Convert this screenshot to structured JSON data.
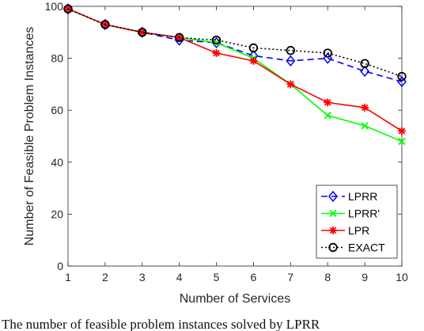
{
  "chart_data": {
    "type": "line",
    "title": "",
    "xlabel": "Number of Services",
    "ylabel": "Number of Feasible Problem Instances",
    "x": [
      1,
      2,
      3,
      4,
      5,
      6,
      7,
      8,
      9,
      10
    ],
    "xlim": [
      1,
      10
    ],
    "ylim": [
      0,
      100
    ],
    "xticks": [
      "1",
      "2",
      "3",
      "4",
      "5",
      "6",
      "7",
      "8",
      "9",
      "10"
    ],
    "yticks": [
      "0",
      "20",
      "40",
      "60",
      "80",
      "100"
    ],
    "grid": false,
    "legend_position": "bottom-right",
    "series": [
      {
        "name": "LPRR",
        "color": "#0000ff",
        "line": "dashed",
        "marker": "diamond",
        "values": [
          99,
          93,
          90,
          87,
          86,
          81,
          79,
          80,
          75,
          71
        ]
      },
      {
        "name": "LPRR'",
        "color": "#00ff00",
        "line": "solid",
        "marker": "x",
        "values": [
          99,
          93,
          90,
          88,
          86,
          80,
          70,
          58,
          54,
          48
        ]
      },
      {
        "name": "LPR",
        "color": "#ff0000",
        "line": "solid",
        "marker": "star",
        "values": [
          99,
          93,
          90,
          88,
          82,
          79,
          70,
          63,
          61,
          52
        ]
      },
      {
        "name": "EXACT",
        "color": "#000000",
        "line": "dotted",
        "marker": "circle",
        "values": [
          99,
          93,
          90,
          88,
          87,
          84,
          83,
          82,
          78,
          73
        ]
      }
    ]
  },
  "caption": "The number of feasible problem instances solved by LPRR"
}
